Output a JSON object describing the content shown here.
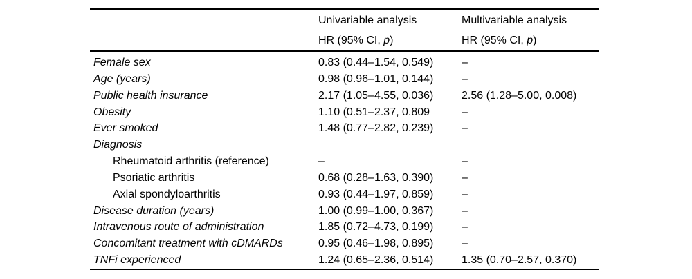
{
  "page": {
    "background_color": "#ffffff",
    "text_color": "#000000"
  },
  "table": {
    "header": {
      "univariable_title": "Univariable analysis",
      "multivariable_title": "Multivariable analysis",
      "measure_prefix": "HR (95% CI, ",
      "measure_p": "p",
      "measure_suffix": ")"
    },
    "rows": [
      {
        "label": "Female sex",
        "univariable": "0.83 (0.44–1.54, 0.549)",
        "multivariable": "–"
      },
      {
        "label": "Age (years)",
        "univariable": "0.98 (0.96–1.01, 0.144)",
        "multivariable": "–"
      },
      {
        "label": "Public health insurance",
        "univariable": "2.17 (1.05–4.55, 0.036)",
        "multivariable": "2.56 (1.28–5.00, 0.008)"
      },
      {
        "label": "Obesity",
        "univariable": "1.10 (0.51–2.37, 0.809",
        "multivariable": "–"
      },
      {
        "label": "Ever smoked",
        "univariable": "1.48 (0.77–2.82, 0.239)",
        "multivariable": "–"
      },
      {
        "label": "Diagnosis",
        "univariable": "",
        "multivariable": ""
      },
      {
        "label": "Rheumatoid arthritis (reference)",
        "univariable": "–",
        "multivariable": "–"
      },
      {
        "label": "Psoriatic arthritis",
        "univariable": "0.68 (0.28–1.63, 0.390)",
        "multivariable": "–"
      },
      {
        "label": "Axial spondyloarthritis",
        "univariable": "0.93 (0.44–1.97, 0.859)",
        "multivariable": "–"
      },
      {
        "label": "Disease duration (years)",
        "univariable": "1.00 (0.99–1.00, 0.367)",
        "multivariable": "–"
      },
      {
        "label": "Intravenous route of administration",
        "univariable": "1.85 (0.72–4.73, 0.199)",
        "multivariable": "–"
      },
      {
        "label": "Concomitant treatment with cDMARDs",
        "univariable": "0.95 (0.46–1.98, 0.895)",
        "multivariable": "–"
      },
      {
        "label": "TNFi experienced",
        "univariable": "1.24 (0.65–2.36, 0.514)",
        "multivariable": "1.35 (0.70–2.57, 0.370)"
      }
    ]
  }
}
